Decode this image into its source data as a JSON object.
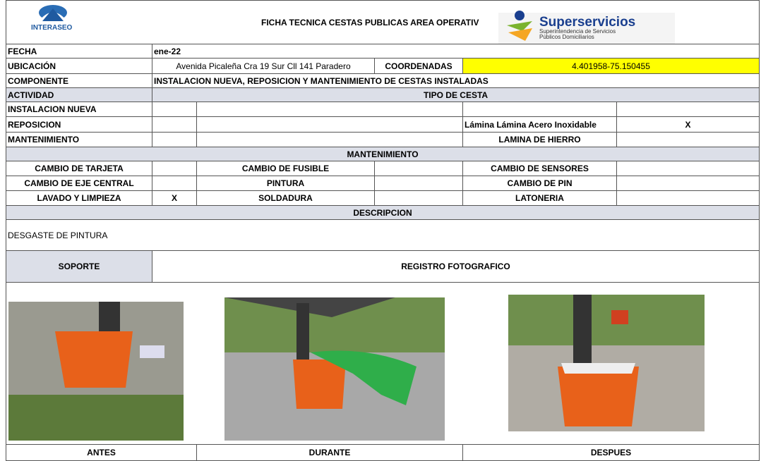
{
  "header": {
    "title": "FICHA TECNICA CESTAS PUBLICAS AREA OPERATIV",
    "logo_left": "INTERASEO",
    "logo_right_name": "Superservicios",
    "logo_right_sub": "Superintendencia de Servicios Públicos Domiciliarios"
  },
  "fecha": {
    "label": "FECHA",
    "value": "ene-22"
  },
  "ubicacion": {
    "label": "UBICACIÓN",
    "value": "Avenida Picaleña Cra 19 Sur Cll 141 Paradero",
    "coord_label": "COORDENADAS",
    "coord_value": "4.401958-75.150455"
  },
  "componente": {
    "label": "COMPONENTE",
    "value": "INSTALACION NUEVA, REPOSICION Y MANTENIMIENTO DE CESTAS INSTALADAS"
  },
  "actividad": {
    "label": "ACTIVIDAD",
    "tipo": "TIPO DE CESTA"
  },
  "activities": [
    {
      "label": "INSTALACION NUEVA"
    },
    {
      "label": "REPOSICION",
      "tipo": "Lámina Lámina Acero Inoxidable",
      "check": "X"
    },
    {
      "label": "MANTENIMIENTO",
      "tipo": "LAMINA DE HIERRO"
    }
  ],
  "mantenimiento": {
    "title": "MANTENIMIENTO",
    "rows": [
      [
        {
          "label": "CAMBIO DE TARJETA"
        },
        {
          "label": "CAMBIO DE FUSIBLE"
        },
        {
          "label": "CAMBIO DE SENSORES"
        }
      ],
      [
        {
          "label": "CAMBIO DE EJE CENTRAL"
        },
        {
          "label": "PINTURA"
        },
        {
          "label": "CAMBIO DE PIN"
        }
      ],
      [
        {
          "label": "LAVADO Y LIMPIEZA",
          "check": "X"
        },
        {
          "label": "SOLDADURA"
        },
        {
          "label": "LATONERIA"
        }
      ]
    ]
  },
  "descripcion": {
    "title": "DESCRIPCION",
    "text": "DESGASTE DE PINTURA"
  },
  "soporte": {
    "label": "SOPORTE",
    "registro": "REGISTRO FOTOGRAFICO"
  },
  "photos": [
    "ANTES",
    "DURANTE",
    "DESPUES"
  ]
}
